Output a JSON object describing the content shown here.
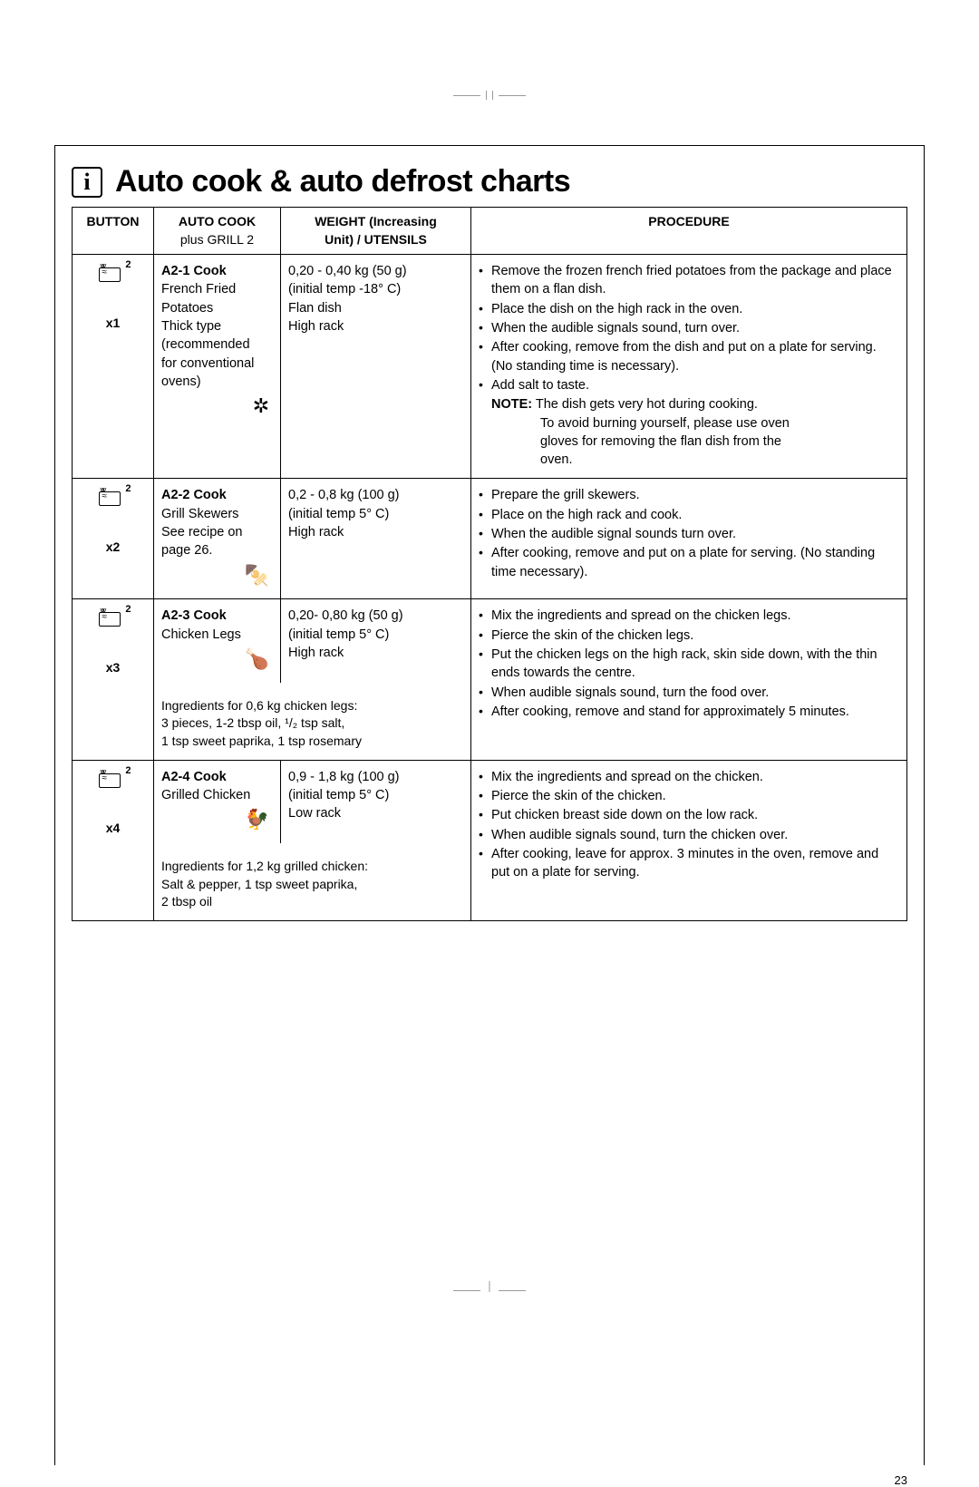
{
  "title": "Auto cook & auto defrost charts",
  "page_number": "23",
  "headers": {
    "button": "BUTTON",
    "autocook_l1": "AUTO COOK",
    "autocook_l2": "plus GRILL 2",
    "weight_l1": "WEIGHT (Increasing",
    "weight_l2": "Unit) / UTENSILS",
    "procedure": "PROCEDURE"
  },
  "rows": [
    {
      "button_label": "x1",
      "auto_title": "A2-1 Cook",
      "auto_lines": [
        "French Fried",
        "Potatoes",
        "Thick type",
        "(recommended",
        "for conventional",
        "ovens)"
      ],
      "weight_lines": [
        "0,20 - 0,40 kg (50 g)",
        "(initial temp -18° C)",
        "Flan dish",
        "High rack"
      ],
      "procedure": [
        "Remove the frozen french fried potatoes from the package and place them on a flan dish.",
        "Place the dish on the high rack in the oven.",
        "When the audible signals sound, turn over.",
        "After cooking, remove from the dish and put on a plate for serving.\n(No standing time is necessary).",
        "Add salt to taste."
      ],
      "note_label": "NOTE:",
      "note_first": "The dish gets very hot during cooking.",
      "note_rest": [
        "To avoid burning yourself, please use oven",
        "gloves for removing the flan dish from the",
        "oven."
      ]
    },
    {
      "button_label": "x2",
      "auto_title": "A2-2 Cook",
      "auto_lines": [
        "Grill Skewers",
        "See recipe on",
        "page 26."
      ],
      "weight_lines": [
        "0,2 - 0,8 kg (100 g)",
        "(initial temp 5° C)",
        "High rack"
      ],
      "procedure": [
        "Prepare the grill skewers.",
        "Place on the high rack and cook.",
        "When the audible signal sounds turn over.",
        "After cooking, remove and put on a plate for serving.  (No standing time necessary)."
      ]
    },
    {
      "button_label": "x3",
      "auto_title": "A2-3 Cook",
      "auto_lines": [
        "Chicken Legs"
      ],
      "ingredients": [
        "Ingredients for 0,6 kg chicken legs:",
        "3 pieces, 1-2 tbsp oil, ¹/₂ tsp salt,",
        "1 tsp sweet paprika, 1 tsp rosemary"
      ],
      "weight_lines": [
        "0,20- 0,80 kg (50 g)",
        "(initial temp 5° C)",
        "High rack"
      ],
      "procedure": [
        "Mix the ingredients and spread on the chicken legs.",
        "Pierce the skin of the chicken legs.",
        "Put the chicken legs on the high rack, skin side down, with the thin ends towards the centre.",
        "When audible signals sound, turn the food over.",
        "After cooking, remove and stand for approximately 5 minutes."
      ]
    },
    {
      "button_label": "x4",
      "auto_title": "A2-4 Cook",
      "auto_lines": [
        "Grilled Chicken"
      ],
      "ingredients": [
        "Ingredients for 1,2 kg grilled chicken:",
        "Salt & pepper, 1 tsp sweet paprika,",
        "2 tbsp oil"
      ],
      "weight_lines": [
        "0,9 - 1,8 kg (100 g)",
        "(initial temp 5° C)",
        "Low rack"
      ],
      "procedure": [
        "Mix the ingredients and spread on the chicken.",
        "Pierce the skin of the chicken.",
        "Put chicken breast side down on the low rack.",
        "When audible signals sound, turn the chicken over.",
        "After cooking, leave for approx. 3 minutes in the oven, remove and put on a plate for serving."
      ]
    }
  ]
}
